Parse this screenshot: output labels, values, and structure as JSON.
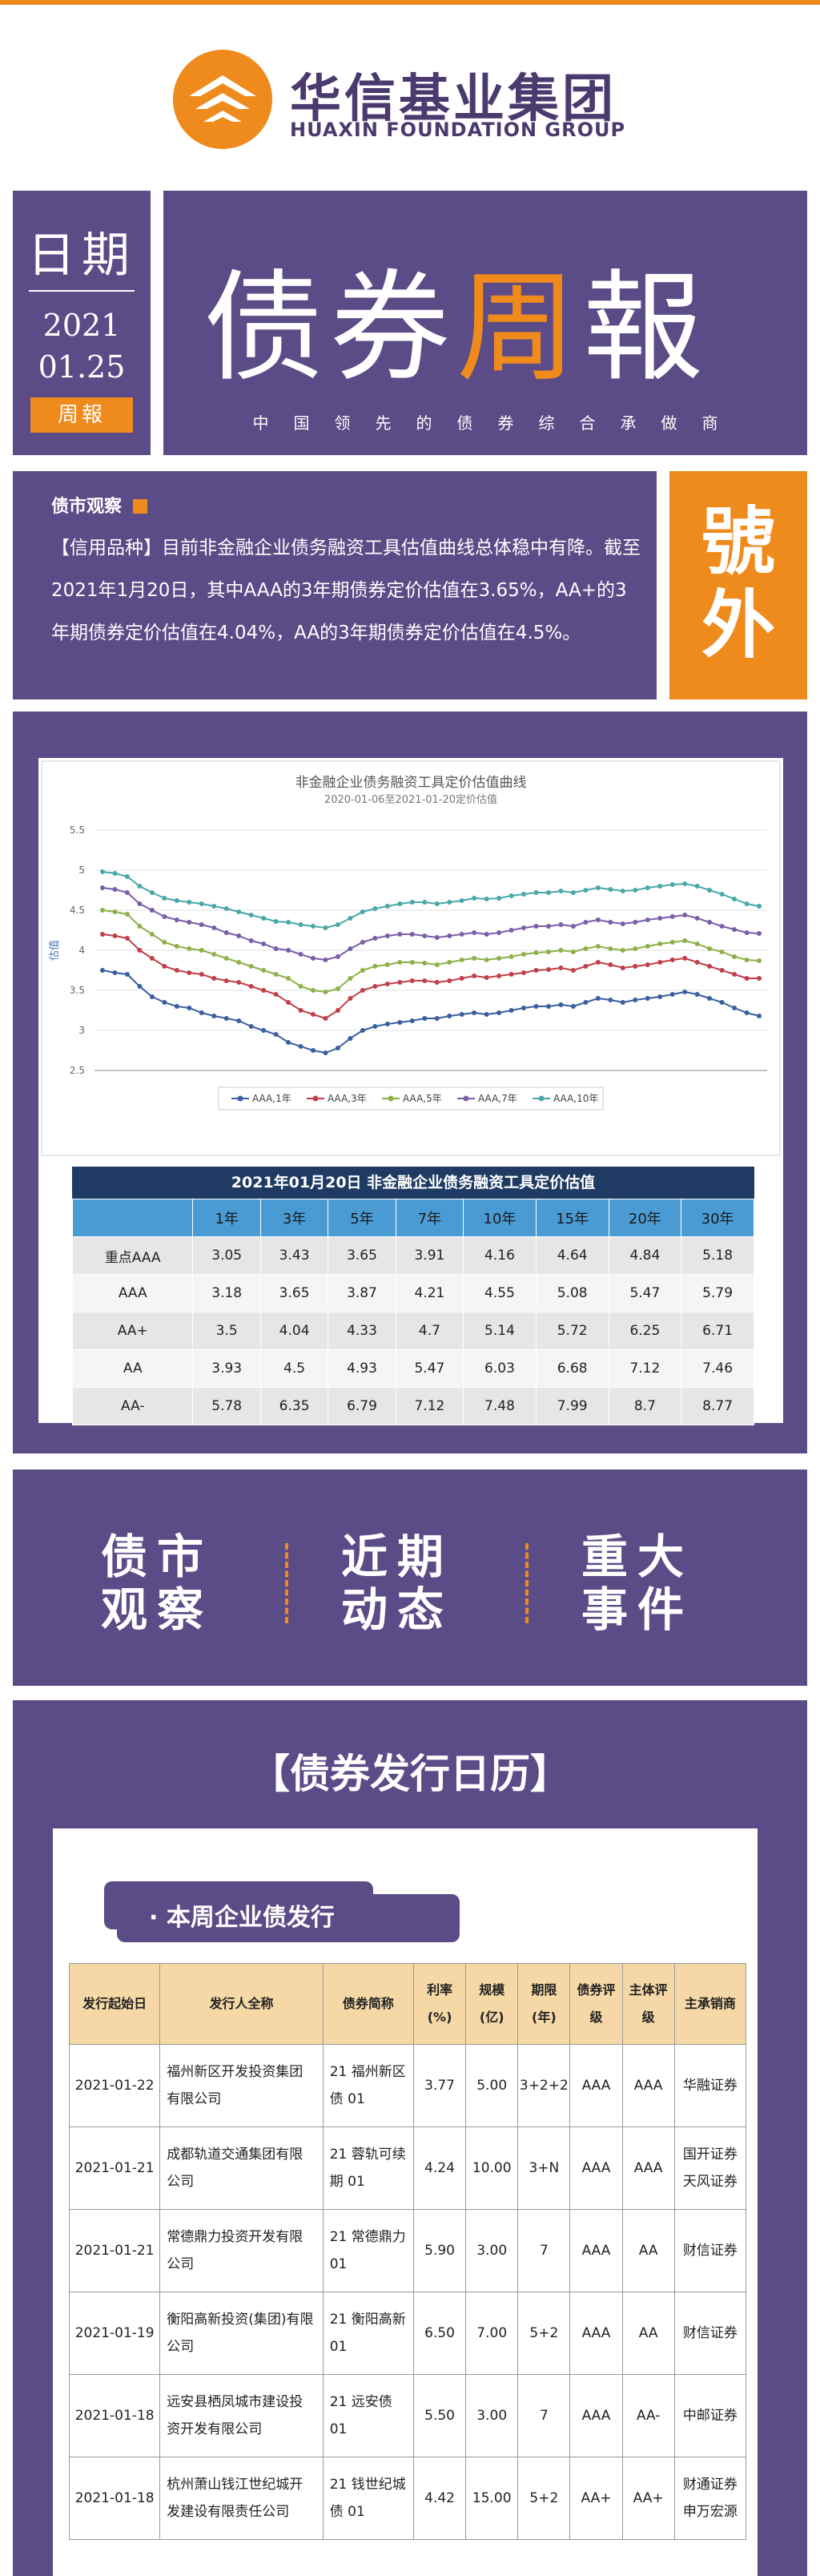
{
  "brand": {
    "name_cn": "华信基业集团",
    "name_en": "HUAXIN FOUNDATION GROUP"
  },
  "header": {
    "date_label": "日期",
    "year": "2021",
    "month_day": "01.25",
    "tag": "周報",
    "title_a": "债券",
    "title_b": "周",
    "title_c": "報",
    "subtitle": "中国领先的债券综合承做商"
  },
  "observation": {
    "heading": "债市观察",
    "text": "【信用品种】目前非金融企业债务融资工具估值曲线总体稳中有降。截至2021年1月20日，其中AAA的3年期债券定价估值在3.65%，AA+的3年期债券定价估值在4.04%，AA的3年期债券定价估值在4.5%。",
    "badge": "號外"
  },
  "chart_data": {
    "type": "line",
    "title": "非金融企业债务融资工具定价估值曲线",
    "subtitle": "2020-01-06至2021-01-20定价估值",
    "ylabel": "估值",
    "ylim": [
      2.5,
      5.5
    ],
    "yticks": [
      2.5,
      3,
      3.5,
      4,
      4.5,
      5,
      5.5
    ],
    "grid": true,
    "legend_position": "bottom",
    "x_points": 54,
    "series": [
      {
        "name": "AAA,1年",
        "color": "#3a5fa0",
        "values": [
          3.75,
          3.72,
          3.7,
          3.55,
          3.42,
          3.35,
          3.3,
          3.28,
          3.22,
          3.18,
          3.15,
          3.12,
          3.05,
          3.0,
          2.95,
          2.85,
          2.8,
          2.75,
          2.72,
          2.78,
          2.9,
          3.0,
          3.05,
          3.08,
          3.1,
          3.12,
          3.15,
          3.15,
          3.18,
          3.2,
          3.22,
          3.2,
          3.22,
          3.25,
          3.28,
          3.3,
          3.3,
          3.32,
          3.3,
          3.35,
          3.4,
          3.38,
          3.35,
          3.38,
          3.4,
          3.42,
          3.45,
          3.48,
          3.45,
          3.4,
          3.35,
          3.28,
          3.22,
          3.18
        ]
      },
      {
        "name": "AAA,3年",
        "color": "#c0404a",
        "values": [
          4.2,
          4.18,
          4.15,
          4.0,
          3.9,
          3.8,
          3.75,
          3.72,
          3.7,
          3.65,
          3.62,
          3.6,
          3.55,
          3.5,
          3.45,
          3.35,
          3.25,
          3.2,
          3.15,
          3.25,
          3.4,
          3.5,
          3.55,
          3.58,
          3.6,
          3.62,
          3.62,
          3.6,
          3.62,
          3.65,
          3.68,
          3.66,
          3.68,
          3.7,
          3.72,
          3.75,
          3.76,
          3.78,
          3.75,
          3.8,
          3.85,
          3.82,
          3.78,
          3.8,
          3.82,
          3.85,
          3.88,
          3.9,
          3.85,
          3.8,
          3.75,
          3.7,
          3.65,
          3.65
        ]
      },
      {
        "name": "AAA,5年",
        "color": "#8fb04a",
        "values": [
          4.5,
          4.48,
          4.45,
          4.3,
          4.2,
          4.1,
          4.05,
          4.02,
          4.0,
          3.95,
          3.9,
          3.85,
          3.8,
          3.75,
          3.7,
          3.65,
          3.55,
          3.5,
          3.48,
          3.52,
          3.65,
          3.75,
          3.8,
          3.82,
          3.85,
          3.85,
          3.84,
          3.82,
          3.85,
          3.88,
          3.9,
          3.88,
          3.9,
          3.92,
          3.95,
          3.97,
          3.98,
          4.0,
          3.98,
          4.02,
          4.05,
          4.02,
          4.0,
          4.02,
          4.05,
          4.08,
          4.1,
          4.12,
          4.08,
          4.02,
          3.98,
          3.92,
          3.88,
          3.87
        ]
      },
      {
        "name": "AAA,7年",
        "color": "#7a5fa8",
        "values": [
          4.78,
          4.76,
          4.72,
          4.58,
          4.5,
          4.42,
          4.38,
          4.35,
          4.32,
          4.28,
          4.22,
          4.18,
          4.12,
          4.08,
          4.02,
          4.0,
          3.95,
          3.9,
          3.88,
          3.92,
          4.02,
          4.1,
          4.15,
          4.18,
          4.2,
          4.2,
          4.18,
          4.16,
          4.18,
          4.2,
          4.22,
          4.2,
          4.22,
          4.25,
          4.28,
          4.3,
          4.3,
          4.32,
          4.3,
          4.35,
          4.38,
          4.35,
          4.33,
          4.35,
          4.38,
          4.4,
          4.42,
          4.44,
          4.4,
          4.35,
          4.3,
          4.26,
          4.22,
          4.21
        ]
      },
      {
        "name": "AAA,10年",
        "color": "#4aa8a8",
        "values": [
          4.98,
          4.96,
          4.92,
          4.8,
          4.72,
          4.65,
          4.62,
          4.6,
          4.58,
          4.55,
          4.52,
          4.48,
          4.44,
          4.4,
          4.36,
          4.35,
          4.32,
          4.3,
          4.28,
          4.32,
          4.4,
          4.48,
          4.52,
          4.55,
          4.58,
          4.6,
          4.6,
          4.58,
          4.6,
          4.62,
          4.65,
          4.64,
          4.65,
          4.68,
          4.7,
          4.72,
          4.72,
          4.74,
          4.72,
          4.75,
          4.78,
          4.76,
          4.74,
          4.75,
          4.78,
          4.8,
          4.82,
          4.83,
          4.8,
          4.75,
          4.7,
          4.64,
          4.58,
          4.55
        ]
      }
    ]
  },
  "valuation_table": {
    "caption": "2021年01月20日  非金融企业债务融资工具定价估值",
    "columns": [
      "",
      "1年",
      "3年",
      "5年",
      "7年",
      "10年",
      "15年",
      "20年",
      "30年"
    ],
    "rows": [
      [
        "重点AAA",
        "3.05",
        "3.43",
        "3.65",
        "3.91",
        "4.16",
        "4.64",
        "4.84",
        "5.18"
      ],
      [
        "AAA",
        "3.18",
        "3.65",
        "3.87",
        "4.21",
        "4.55",
        "5.08",
        "5.47",
        "5.79"
      ],
      [
        "AA+",
        "3.5",
        "4.04",
        "4.33",
        "4.7",
        "5.14",
        "5.72",
        "6.25",
        "6.71"
      ],
      [
        "AA",
        "3.93",
        "4.5",
        "4.93",
        "5.47",
        "6.03",
        "6.68",
        "7.12",
        "7.46"
      ],
      [
        "AA-",
        "5.78",
        "6.35",
        "6.79",
        "7.12",
        "7.48",
        "7.99",
        "8.7",
        "8.77"
      ]
    ]
  },
  "nav": [
    {
      "line1": "债市",
      "line2": "观察"
    },
    {
      "line1": "近期",
      "line2": "动态"
    },
    {
      "line1": "重大",
      "line2": "事件"
    }
  ],
  "calendar": {
    "title": "【债券发行日历】",
    "tab": "· 本周企业债发行",
    "columns": [
      "发行起始日",
      "发行人全称",
      "债券简称",
      "利率(%)",
      "规模(亿)",
      "期限(年)",
      "债券评级",
      "主体评级",
      "主承销商"
    ],
    "rows": [
      [
        "2021-01-22",
        "福州新区开发投资集团有限公司",
        "21 福州新区债 01",
        "3.77",
        "5.00",
        "3+2+2",
        "AAA",
        "AAA",
        "华融证券"
      ],
      [
        "2021-01-21",
        "成都轨道交通集团有限公司",
        "21 蓉轨可续期 01",
        "4.24",
        "10.00",
        "3+N",
        "AAA",
        "AAA",
        "国开证券 天风证券"
      ],
      [
        "2021-01-21",
        "常德鼎力投资开发有限公司",
        "21 常德鼎力 01",
        "5.90",
        "3.00",
        "7",
        "AAA",
        "AA",
        "财信证券"
      ],
      [
        "2021-01-19",
        "衡阳高新投资(集团)有限公司",
        "21 衡阳高新 01",
        "6.50",
        "7.00",
        "5+2",
        "AAA",
        "AA",
        "财信证券"
      ],
      [
        "2021-01-18",
        "远安县栖凤城市建设投资开发有限公司",
        "21 远安债 01",
        "5.50",
        "3.00",
        "7",
        "AAA",
        "AA-",
        "中邮证券"
      ],
      [
        "2021-01-18",
        "杭州萧山钱江世纪城开发建设有限责任公司",
        "21 钱世纪城债 01",
        "4.42",
        "15.00",
        "5+2",
        "AA+",
        "AA+",
        "财通证券 申万宏源"
      ]
    ]
  }
}
